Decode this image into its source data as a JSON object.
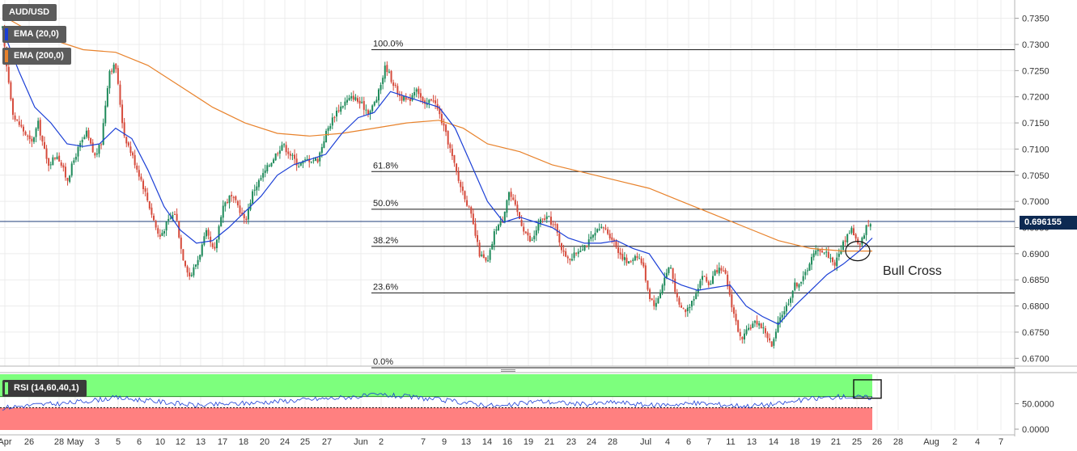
{
  "symbol": "AUD/USD",
  "indicators": {
    "ema_fast": {
      "label": "EMA (20,0)",
      "color": "#1b3fd6"
    },
    "ema_slow": {
      "label": "EMA (200,0)",
      "color": "#e8822b"
    },
    "rsi": {
      "label": "RSI (14,60,40,1)",
      "color": "#1b3fd6"
    }
  },
  "current_price": "0.696155",
  "annotation": "Bull Cross",
  "colors": {
    "up": "#1e8a5a",
    "down": "#d64b3c",
    "rsi_over": "#7dff7d",
    "rsi_under": "#ff8080",
    "price_line": "#1f3d7a"
  },
  "chart_data": {
    "type": "candlestick",
    "ylim": [
      0.6685,
      0.7385
    ],
    "y_ticks": [
      "0.7350",
      "0.7300",
      "0.7250",
      "0.7200",
      "0.7150",
      "0.7100",
      "0.7050",
      "0.7000",
      "0.6950",
      "0.6900",
      "0.6850",
      "0.6800",
      "0.6750",
      "0.6700"
    ],
    "y_tick_values": [
      0.735,
      0.73,
      0.725,
      0.72,
      0.715,
      0.71,
      0.705,
      0.7,
      0.695,
      0.69,
      0.685,
      0.68,
      0.675,
      0.67
    ],
    "x_ticks": [
      "Apr",
      "26",
      "28",
      "May",
      "3",
      "5",
      "6",
      "10",
      "12",
      "13",
      "17",
      "18",
      "20",
      "24",
      "25",
      "27",
      "Jun",
      "2",
      "7",
      "9",
      "13",
      "14",
      "16",
      "19",
      "21",
      "23",
      "24",
      "28",
      "Jul",
      "4",
      "6",
      "7",
      "11",
      "13",
      "14",
      "18",
      "19",
      "21",
      "25",
      "26",
      "28",
      "Aug",
      "2",
      "4",
      "7"
    ],
    "close_path": [
      [
        0.733,
        0
      ],
      [
        0.727,
        4
      ],
      [
        0.716,
        14
      ],
      [
        0.7145,
        22
      ],
      [
        0.711,
        36
      ],
      [
        0.715,
        44
      ],
      [
        0.707,
        56
      ],
      [
        0.709,
        68
      ],
      [
        0.704,
        80
      ],
      [
        0.7095,
        92
      ],
      [
        0.713,
        104
      ],
      [
        0.7085,
        114
      ],
      [
        0.711,
        122
      ],
      [
        0.725,
        132
      ],
      [
        0.726,
        140
      ],
      [
        0.713,
        150
      ],
      [
        0.709,
        160
      ],
      [
        0.704,
        172
      ],
      [
        0.699,
        182
      ],
      [
        0.693,
        194
      ],
      [
        0.696,
        204
      ],
      [
        0.698,
        214
      ],
      [
        0.69,
        222
      ],
      [
        0.6855,
        232
      ],
      [
        0.689,
        242
      ],
      [
        0.694,
        252
      ],
      [
        0.69,
        262
      ],
      [
        0.699,
        272
      ],
      [
        0.701,
        282
      ],
      [
        0.699,
        292
      ],
      [
        0.696,
        300
      ],
      [
        0.702,
        310
      ],
      [
        0.705,
        322
      ],
      [
        0.708,
        334
      ],
      [
        0.711,
        346
      ],
      [
        0.709,
        356
      ],
      [
        0.707,
        366
      ],
      [
        0.708,
        378
      ],
      [
        0.708,
        390
      ],
      [
        0.713,
        400
      ],
      [
        0.717,
        412
      ],
      [
        0.719,
        424
      ],
      [
        0.72,
        434
      ],
      [
        0.7185,
        444
      ],
      [
        0.717,
        454
      ],
      [
        0.72,
        464
      ],
      [
        0.726,
        474
      ],
      [
        0.723,
        482
      ],
      [
        0.72,
        492
      ],
      [
        0.719,
        502
      ],
      [
        0.722,
        512
      ],
      [
        0.718,
        522
      ],
      [
        0.72,
        532
      ],
      [
        0.716,
        542
      ],
      [
        0.711,
        552
      ],
      [
        0.704,
        564
      ],
      [
        0.701,
        572
      ],
      [
        0.697,
        580
      ],
      [
        0.69,
        590
      ],
      [
        0.688,
        600
      ],
      [
        0.695,
        610
      ],
      [
        0.696,
        618
      ],
      [
        0.702,
        626
      ],
      [
        0.699,
        634
      ],
      [
        0.695,
        644
      ],
      [
        0.692,
        654
      ],
      [
        0.696,
        664
      ],
      [
        0.697,
        674
      ],
      [
        0.695,
        684
      ],
      [
        0.69,
        694
      ],
      [
        0.689,
        704
      ],
      [
        0.691,
        714
      ],
      [
        0.692,
        724
      ],
      [
        0.694,
        734
      ],
      [
        0.695,
        744
      ],
      [
        0.693,
        754
      ],
      [
        0.69,
        764
      ],
      [
        0.688,
        774
      ],
      [
        0.69,
        784
      ],
      [
        0.688,
        792
      ],
      [
        0.682,
        800
      ],
      [
        0.68,
        808
      ],
      [
        0.685,
        818
      ],
      [
        0.688,
        826
      ],
      [
        0.68,
        836
      ],
      [
        0.679,
        846
      ],
      [
        0.682,
        856
      ],
      [
        0.686,
        866
      ],
      [
        0.684,
        874
      ],
      [
        0.687,
        884
      ],
      [
        0.686,
        894
      ],
      [
        0.679,
        904
      ],
      [
        0.673,
        914
      ],
      [
        0.676,
        924
      ],
      [
        0.677,
        934
      ],
      [
        0.675,
        944
      ],
      [
        0.672,
        952
      ],
      [
        0.678,
        962
      ],
      [
        0.68,
        970
      ],
      [
        0.684,
        980
      ],
      [
        0.685,
        990
      ],
      [
        0.689,
        1000
      ],
      [
        0.691,
        1010
      ],
      [
        0.69,
        1020
      ],
      [
        0.688,
        1030
      ],
      [
        0.692,
        1040
      ],
      [
        0.695,
        1050
      ],
      [
        0.691,
        1060
      ],
      [
        0.695,
        1068
      ],
      [
        0.696,
        1076
      ]
    ],
    "fibonacci": [
      {
        "label": "100.0%",
        "value": 0.729
      },
      {
        "label": "61.8%",
        "value": 0.7057
      },
      {
        "label": "50.0%",
        "value": 0.6985
      },
      {
        "label": "38.2%",
        "value": 0.6914
      },
      {
        "label": "23.6%",
        "value": 0.6825
      },
      {
        "label": "0.0%",
        "value": 0.6682
      }
    ],
    "last_price": 0.696155,
    "ema20_path": [
      [
        0.733,
        0
      ],
      [
        0.725,
        20
      ],
      [
        0.718,
        40
      ],
      [
        0.715,
        60
      ],
      [
        0.711,
        80
      ],
      [
        0.7105,
        100
      ],
      [
        0.711,
        120
      ],
      [
        0.714,
        140
      ],
      [
        0.712,
        160
      ],
      [
        0.706,
        180
      ],
      [
        0.699,
        200
      ],
      [
        0.6945,
        220
      ],
      [
        0.692,
        240
      ],
      [
        0.6925,
        260
      ],
      [
        0.695,
        280
      ],
      [
        0.698,
        300
      ],
      [
        0.701,
        320
      ],
      [
        0.705,
        340
      ],
      [
        0.707,
        360
      ],
      [
        0.708,
        380
      ],
      [
        0.709,
        400
      ],
      [
        0.713,
        420
      ],
      [
        0.716,
        440
      ],
      [
        0.717,
        460
      ],
      [
        0.721,
        480
      ],
      [
        0.72,
        500
      ],
      [
        0.719,
        520
      ],
      [
        0.718,
        540
      ],
      [
        0.714,
        560
      ],
      [
        0.707,
        580
      ],
      [
        0.7,
        600
      ],
      [
        0.696,
        620
      ],
      [
        0.697,
        640
      ],
      [
        0.696,
        660
      ],
      [
        0.695,
        680
      ],
      [
        0.693,
        700
      ],
      [
        0.692,
        720
      ],
      [
        0.692,
        740
      ],
      [
        0.6925,
        760
      ],
      [
        0.691,
        780
      ],
      [
        0.69,
        800
      ],
      [
        0.6855,
        820
      ],
      [
        0.684,
        840
      ],
      [
        0.683,
        860
      ],
      [
        0.6835,
        880
      ],
      [
        0.684,
        900
      ],
      [
        0.68,
        920
      ],
      [
        0.678,
        940
      ],
      [
        0.6765,
        960
      ],
      [
        0.68,
        980
      ],
      [
        0.683,
        1000
      ],
      [
        0.686,
        1020
      ],
      [
        0.688,
        1040
      ],
      [
        0.6905,
        1060
      ],
      [
        0.693,
        1076
      ]
    ],
    "ema200_path": [
      [
        0.7355,
        0
      ],
      [
        0.732,
        40
      ],
      [
        0.729,
        100
      ],
      [
        0.7285,
        140
      ],
      [
        0.726,
        180
      ],
      [
        0.722,
        220
      ],
      [
        0.718,
        260
      ],
      [
        0.715,
        300
      ],
      [
        0.713,
        340
      ],
      [
        0.7125,
        380
      ],
      [
        0.713,
        420
      ],
      [
        0.714,
        460
      ],
      [
        0.715,
        500
      ],
      [
        0.7155,
        540
      ],
      [
        0.714,
        570
      ],
      [
        0.711,
        600
      ],
      [
        0.7095,
        640
      ],
      [
        0.707,
        680
      ],
      [
        0.7055,
        720
      ],
      [
        0.704,
        760
      ],
      [
        0.7025,
        800
      ],
      [
        0.7,
        840
      ],
      [
        0.6975,
        880
      ],
      [
        0.695,
        920
      ],
      [
        0.6925,
        960
      ],
      [
        0.691,
        1000
      ],
      [
        0.6905,
        1040
      ],
      [
        0.6905,
        1076
      ]
    ],
    "rsi_ylim": [
      0,
      100
    ],
    "rsi_ticks": [
      "50.0000",
      "0.0000"
    ],
    "rsi_tick_values": [
      50,
      0
    ],
    "rsi_levels": [
      60,
      40
    ],
    "rsi_path": [
      [
        40,
        0
      ],
      [
        45,
        40
      ],
      [
        48,
        80
      ],
      [
        58,
        140
      ],
      [
        50,
        200
      ],
      [
        44,
        240
      ],
      [
        48,
        300
      ],
      [
        53,
        360
      ],
      [
        58,
        420
      ],
      [
        63,
        470
      ],
      [
        57,
        520
      ],
      [
        48,
        580
      ],
      [
        42,
        620
      ],
      [
        52,
        660
      ],
      [
        46,
        720
      ],
      [
        50,
        760
      ],
      [
        44,
        800
      ],
      [
        48,
        860
      ],
      [
        43,
        920
      ],
      [
        47,
        960
      ],
      [
        56,
        1000
      ],
      [
        60,
        1040
      ],
      [
        58,
        1076
      ]
    ]
  }
}
